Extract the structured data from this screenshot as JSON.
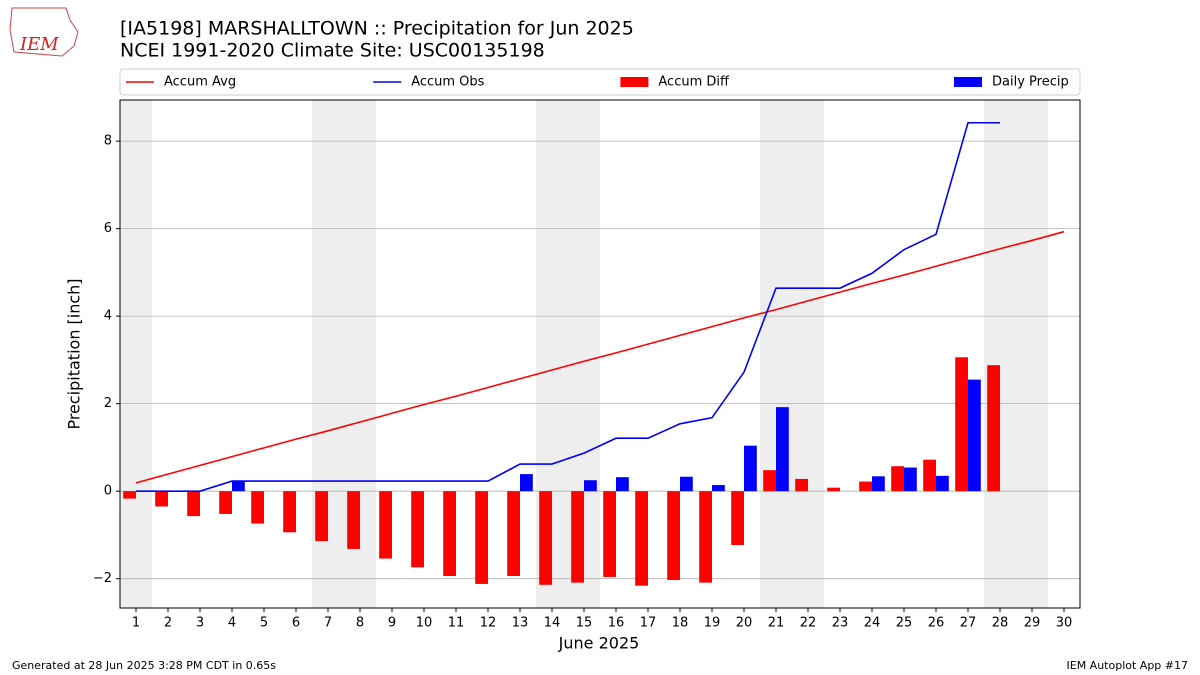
{
  "chart_data": {
    "type": "combo",
    "logo_text": "IEM",
    "title": "[IA5198] MARSHALLTOWN :: Precipitation for Jun 2025",
    "subtitle": "NCEI 1991-2020 Climate Site: USC00135198",
    "x_label": "June 2025",
    "y_label": "Precipitation [inch]",
    "footer_left": "Generated at 28 Jun 2025 3:28 PM CDT in 0.65s",
    "footer_right": "IEM Autoplot App #17",
    "legend": "top",
    "grid": true,
    "shaded_spans": [
      [
        0.5,
        1.5
      ],
      [
        6.5,
        8.5
      ],
      [
        13.5,
        15.5
      ],
      [
        20.5,
        22.5
      ],
      [
        27.5,
        29.5
      ]
    ],
    "x": [
      1,
      2,
      3,
      4,
      5,
      6,
      7,
      8,
      9,
      10,
      11,
      12,
      13,
      14,
      15,
      16,
      17,
      18,
      19,
      20,
      21,
      22,
      23,
      24,
      25,
      26,
      27,
      28,
      29,
      30
    ],
    "xlim": [
      0.5,
      30.5
    ],
    "xticks": [
      1,
      2,
      3,
      4,
      5,
      6,
      7,
      8,
      9,
      10,
      11,
      12,
      13,
      14,
      15,
      16,
      17,
      18,
      19,
      20,
      21,
      22,
      23,
      24,
      25,
      26,
      27,
      28,
      29,
      30
    ],
    "ylim": [
      -2.67,
      8.94
    ],
    "yticks": [
      {
        "value": -2,
        "label": "−2"
      },
      0,
      2,
      4,
      6,
      8
    ],
    "series": [
      {
        "name": "Accum Avg",
        "type": "line",
        "color": "#ff0000",
        "values": [
          0.19,
          0.39,
          0.59,
          0.79,
          0.99,
          1.19,
          1.38,
          1.58,
          1.78,
          1.98,
          2.17,
          2.37,
          2.57,
          2.77,
          2.97,
          3.16,
          3.36,
          3.56,
          3.76,
          3.96,
          4.15,
          4.35,
          4.55,
          4.75,
          4.94,
          5.14,
          5.34,
          5.54,
          5.73,
          5.93
        ]
      },
      {
        "name": "Accum Obs",
        "type": "line",
        "color": "#0000ff",
        "values": [
          0,
          0,
          0,
          0.23,
          0.23,
          0.23,
          0.23,
          0.23,
          0.23,
          0.23,
          0.23,
          0.23,
          0.62,
          0.62,
          0.87,
          1.21,
          1.21,
          1.54,
          1.68,
          2.72,
          4.64,
          4.64,
          4.64,
          4.98,
          5.52,
          5.87,
          8.42,
          8.42,
          null,
          null
        ]
      },
      {
        "name": "Accum Diff",
        "type": "bar",
        "color": "#ff0000",
        "values": [
          -0.17,
          -0.35,
          -0.57,
          -0.52,
          -0.74,
          -0.94,
          -1.14,
          -1.32,
          -1.54,
          -1.74,
          -1.94,
          -2.12,
          -1.94,
          -2.14,
          -2.09,
          -1.96,
          -2.16,
          -2.03,
          -2.09,
          -1.23,
          0.48,
          0.28,
          0.08,
          0.22,
          0.57,
          0.72,
          3.06,
          2.88,
          null,
          null
        ]
      },
      {
        "name": "Daily Precip",
        "type": "bar",
        "color": "#0000ff",
        "values": [
          0,
          0,
          0,
          0.23,
          0,
          0,
          0,
          0,
          0,
          0,
          0,
          0,
          0.39,
          0,
          0.25,
          0.32,
          0,
          0.33,
          0.14,
          1.04,
          1.92,
          0,
          0,
          0.34,
          0.54,
          0.35,
          2.55,
          0,
          null,
          null
        ]
      }
    ]
  }
}
